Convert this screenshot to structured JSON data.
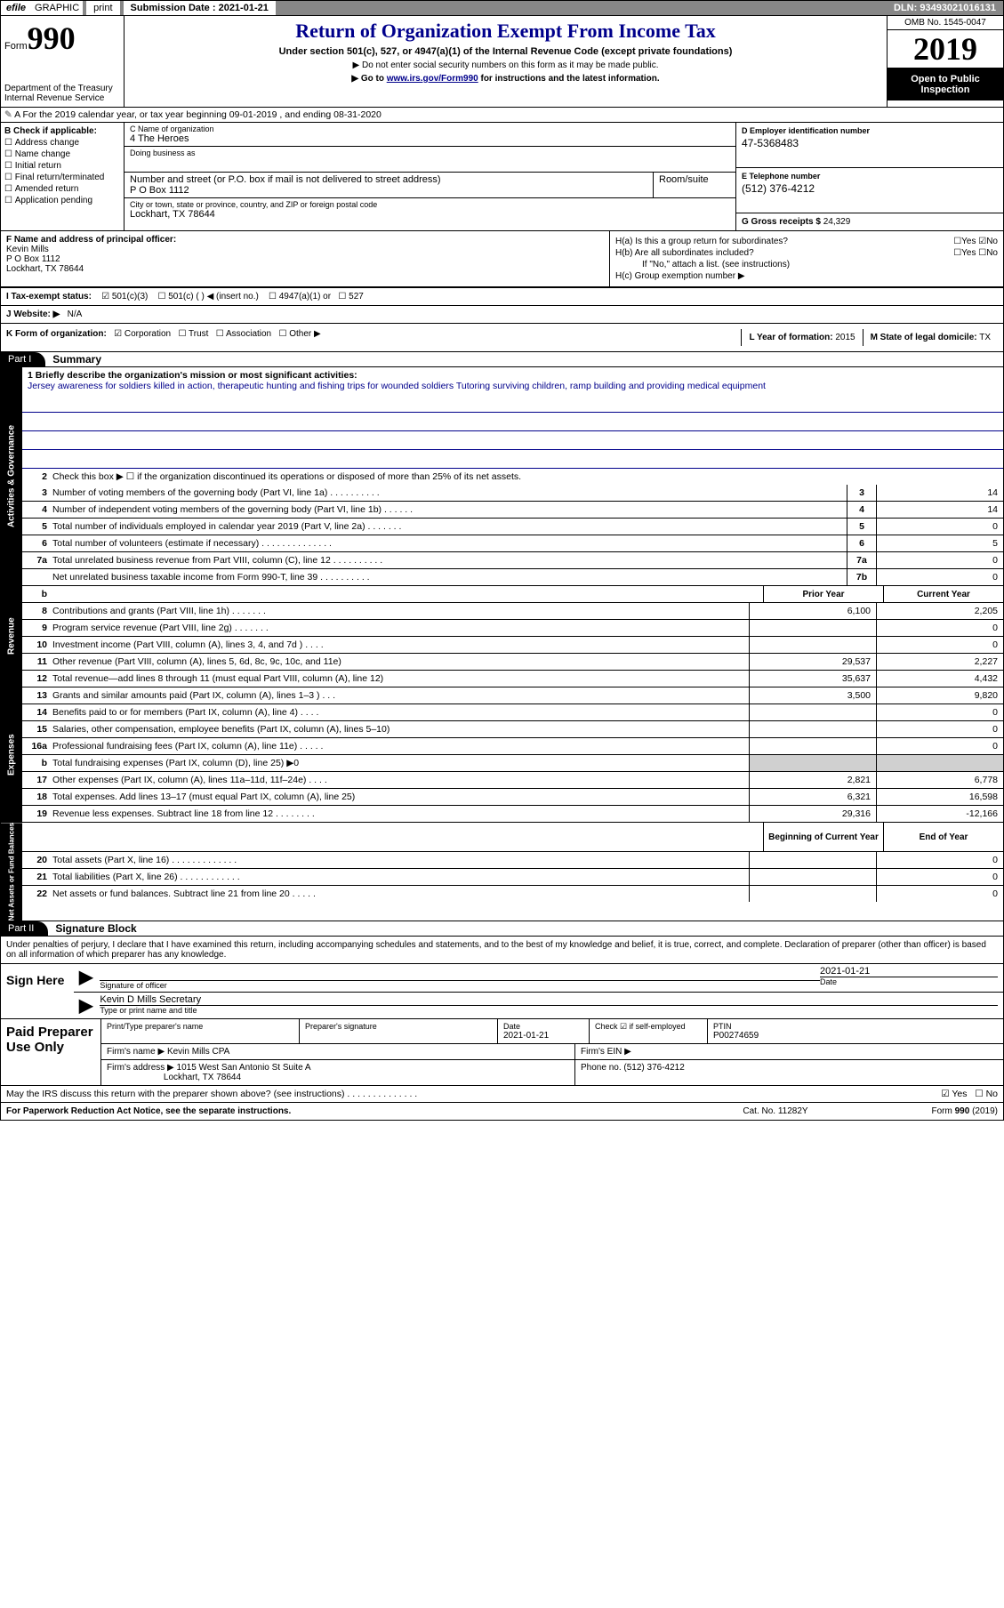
{
  "topbar": {
    "efile": "efile",
    "graphic": "GRAPHIC",
    "print": "print",
    "subdate_label": "Submission Date :",
    "subdate": "2021-01-21",
    "dln": "DLN: 93493021016131"
  },
  "header": {
    "form_label": "Form",
    "form_num": "990",
    "dept1": "Department of the Treasury",
    "dept2": "Internal Revenue Service",
    "title": "Return of Organization Exempt From Income Tax",
    "subtitle": "Under section 501(c), 527, or 4947(a)(1) of the Internal Revenue Code (except private foundations)",
    "note1": "▶ Do not enter social security numbers on this form as it may be made public.",
    "note2_pre": "▶ Go to ",
    "note2_link": "www.irs.gov/Form990",
    "note2_post": " for instructions and the latest information.",
    "omb": "OMB No. 1545-0047",
    "year": "2019",
    "open": "Open to Public Inspection"
  },
  "rowA": "A For the 2019 calendar year, or tax year beginning 09-01-2019    , and ending 08-31-2020",
  "B": {
    "label": "B Check if applicable:",
    "items": [
      "Address change",
      "Name change",
      "Initial return",
      "Final return/terminated",
      "Amended return",
      "Application pending"
    ]
  },
  "C": {
    "name_lbl": "C Name of organization",
    "name": "4 The Heroes",
    "dba_lbl": "Doing business as",
    "street_lbl": "Number and street (or P.O. box if mail is not delivered to street address)",
    "room_lbl": "Room/suite",
    "street": "P O Box 1112",
    "city_lbl": "City or town, state or province, country, and ZIP or foreign postal code",
    "city": "Lockhart, TX  78644"
  },
  "D": {
    "lbl": "D Employer identification number",
    "val": "47-5368483"
  },
  "E": {
    "lbl": "E Telephone number",
    "val": "(512) 376-4212"
  },
  "G": {
    "lbl": "G Gross receipts $",
    "val": "24,329"
  },
  "F": {
    "lbl": "F  Name and address of principal officer:",
    "name": "Kevin Mills",
    "addr1": "P O Box 1112",
    "addr2": "Lockhart, TX  78644"
  },
  "H": {
    "a": "H(a)  Is this a group return for subordinates?",
    "b": "H(b)  Are all subordinates included?",
    "b_note": "If \"No,\" attach a list. (see instructions)",
    "c": "H(c)  Group exemption number ▶"
  },
  "I": {
    "lbl": "I    Tax-exempt status:",
    "opts": [
      "501(c)(3)",
      "501(c) (  ) ◀ (insert no.)",
      "4947(a)(1) or",
      "527"
    ]
  },
  "J": {
    "lbl": "J   Website: ▶",
    "val": "N/A"
  },
  "K": {
    "lbl": "K Form of organization:",
    "opts": [
      "Corporation",
      "Trust",
      "Association",
      "Other ▶"
    ]
  },
  "L": {
    "lbl": "L Year of formation:",
    "val": "2015"
  },
  "M": {
    "lbl": "M State of legal domicile:",
    "val": "TX"
  },
  "part1": {
    "hdr": "Part I",
    "title": "Summary",
    "side_gov": "Activities & Governance",
    "side_rev": "Revenue",
    "side_exp": "Expenses",
    "side_net": "Net Assets or Fund Balances",
    "line1_lbl": "1  Briefly describe the organization's mission or most significant activities:",
    "line1_val": "Jersey awareness for soldiers killed in action, therapeutic hunting and fishing trips for wounded soldiers Tutoring surviving children, ramp building and providing medical equipment",
    "line2": "Check this box ▶ ☐  if the organization discontinued its operations or disposed of more than 25% of its net assets.",
    "rows_gov": [
      {
        "n": "3",
        "d": "Number of voting members of the governing body (Part VI, line 1a)  .    .    .    .    .    .    .    .    .    .",
        "b": "3",
        "v": "14"
      },
      {
        "n": "4",
        "d": "Number of independent voting members of the governing body (Part VI, line 1b)  .    .    .    .    .    .",
        "b": "4",
        "v": "14"
      },
      {
        "n": "5",
        "d": "Total number of individuals employed in calendar year 2019 (Part V, line 2a)  .    .    .    .    .    .    .",
        "b": "5",
        "v": "0"
      },
      {
        "n": "6",
        "d": "Total number of volunteers (estimate if necessary)    .    .    .    .    .    .    .    .    .    .    .    .    .    .",
        "b": "6",
        "v": "5"
      },
      {
        "n": "7a",
        "d": "Total unrelated business revenue from Part VIII, column (C), line 12  .    .    .    .    .    .    .    .    .    .",
        "b": "7a",
        "v": "0"
      },
      {
        "n": "",
        "d": "Net unrelated business taxable income from Form 990-T, line 39  .    .    .    .    .    .    .    .    .    .",
        "b": "7b",
        "v": "0"
      }
    ],
    "col_prior": "Prior Year",
    "col_curr": "Current Year",
    "rows_rev": [
      {
        "n": "8",
        "d": "Contributions and grants (Part VIII, line 1h)  .    .    .    .    .    .    .",
        "p": "6,100",
        "c": "2,205"
      },
      {
        "n": "9",
        "d": "Program service revenue (Part VIII, line 2g)  .    .    .    .    .    .    .",
        "p": "",
        "c": "0"
      },
      {
        "n": "10",
        "d": "Investment income (Part VIII, column (A), lines 3, 4, and 7d )  .    .    .    .",
        "p": "",
        "c": "0"
      },
      {
        "n": "11",
        "d": "Other revenue (Part VIII, column (A), lines 5, 6d, 8c, 9c, 10c, and 11e)",
        "p": "29,537",
        "c": "2,227"
      },
      {
        "n": "12",
        "d": "Total revenue—add lines 8 through 11 (must equal Part VIII, column (A), line 12)",
        "p": "35,637",
        "c": "4,432"
      }
    ],
    "rows_exp": [
      {
        "n": "13",
        "d": "Grants and similar amounts paid (Part IX, column (A), lines 1–3 )  .    .    .",
        "p": "3,500",
        "c": "9,820"
      },
      {
        "n": "14",
        "d": "Benefits paid to or for members (Part IX, column (A), line 4)  .    .    .    .",
        "p": "",
        "c": "0"
      },
      {
        "n": "15",
        "d": "Salaries, other compensation, employee benefits (Part IX, column (A), lines 5–10)",
        "p": "",
        "c": "0"
      },
      {
        "n": "16a",
        "d": "Professional fundraising fees (Part IX, column (A), line 11e)  .    .    .    .    .",
        "p": "",
        "c": "0"
      },
      {
        "n": "b",
        "d": "Total fundraising expenses (Part IX, column (D), line 25) ▶0",
        "p": "grey",
        "c": "grey"
      },
      {
        "n": "17",
        "d": "Other expenses (Part IX, column (A), lines 11a–11d, 11f–24e)  .    .    .    .",
        "p": "2,821",
        "c": "6,778"
      },
      {
        "n": "18",
        "d": "Total expenses. Add lines 13–17 (must equal Part IX, column (A), line 25)",
        "p": "6,321",
        "c": "16,598"
      },
      {
        "n": "19",
        "d": "Revenue less expenses. Subtract line 18 from line 12  .    .    .    .    .    .    .    .",
        "p": "29,316",
        "c": "-12,166"
      }
    ],
    "col_beg": "Beginning of Current Year",
    "col_end": "End of Year",
    "rows_net": [
      {
        "n": "20",
        "d": "Total assets (Part X, line 16)  .    .    .    .    .    .    .    .    .    .    .    .    .",
        "p": "",
        "c": "0"
      },
      {
        "n": "21",
        "d": "Total liabilities (Part X, line 26)  .    .    .    .    .    .    .    .    .    .    .    .",
        "p": "",
        "c": "0"
      },
      {
        "n": "22",
        "d": "Net assets or fund balances. Subtract line 21 from line 20  .    .    .    .    .",
        "p": "",
        "c": "0"
      }
    ]
  },
  "part2": {
    "hdr": "Part II",
    "title": "Signature Block",
    "decl": "Under penalties of perjury, I declare that I have examined this return, including accompanying schedules and statements, and to the best of my knowledge and belief, it is true, correct, and complete. Declaration of preparer (other than officer) is based on all information of which preparer has any knowledge.",
    "sign_here": "Sign Here",
    "sig_officer": "Signature of officer",
    "sig_date_lbl": "Date",
    "sig_date": "2021-01-21",
    "sig_name": "Kevin D Mills  Secretary",
    "sig_name_lbl": "Type or print name and title",
    "paid": "Paid Preparer Use Only",
    "prep_name_lbl": "Print/Type preparer's name",
    "prep_sig_lbl": "Preparer's signature",
    "prep_date_lbl": "Date",
    "prep_date": "2021-01-21",
    "prep_check": "Check ☑ if self-employed",
    "prep_ptin_lbl": "PTIN",
    "prep_ptin": "P00274659",
    "firm_name_lbl": "Firm's name      ▶",
    "firm_name": "Kevin Mills CPA",
    "firm_ein_lbl": "Firm's EIN ▶",
    "firm_addr_lbl": "Firm's address  ▶",
    "firm_addr1": "1015 West San Antonio St Suite A",
    "firm_addr2": "Lockhart, TX  78644",
    "firm_phone_lbl": "Phone no.",
    "firm_phone": "(512) 376-4212",
    "discuss": "May the IRS discuss this return with the preparer shown above? (see instructions)   .    .    .    .    .    .    .    .    .    .    .    .    .    ."
  },
  "footer": {
    "left": "For Paperwork Reduction Act Notice, see the separate instructions.",
    "mid": "Cat. No. 11282Y",
    "right": "Form 990 (2019)"
  }
}
